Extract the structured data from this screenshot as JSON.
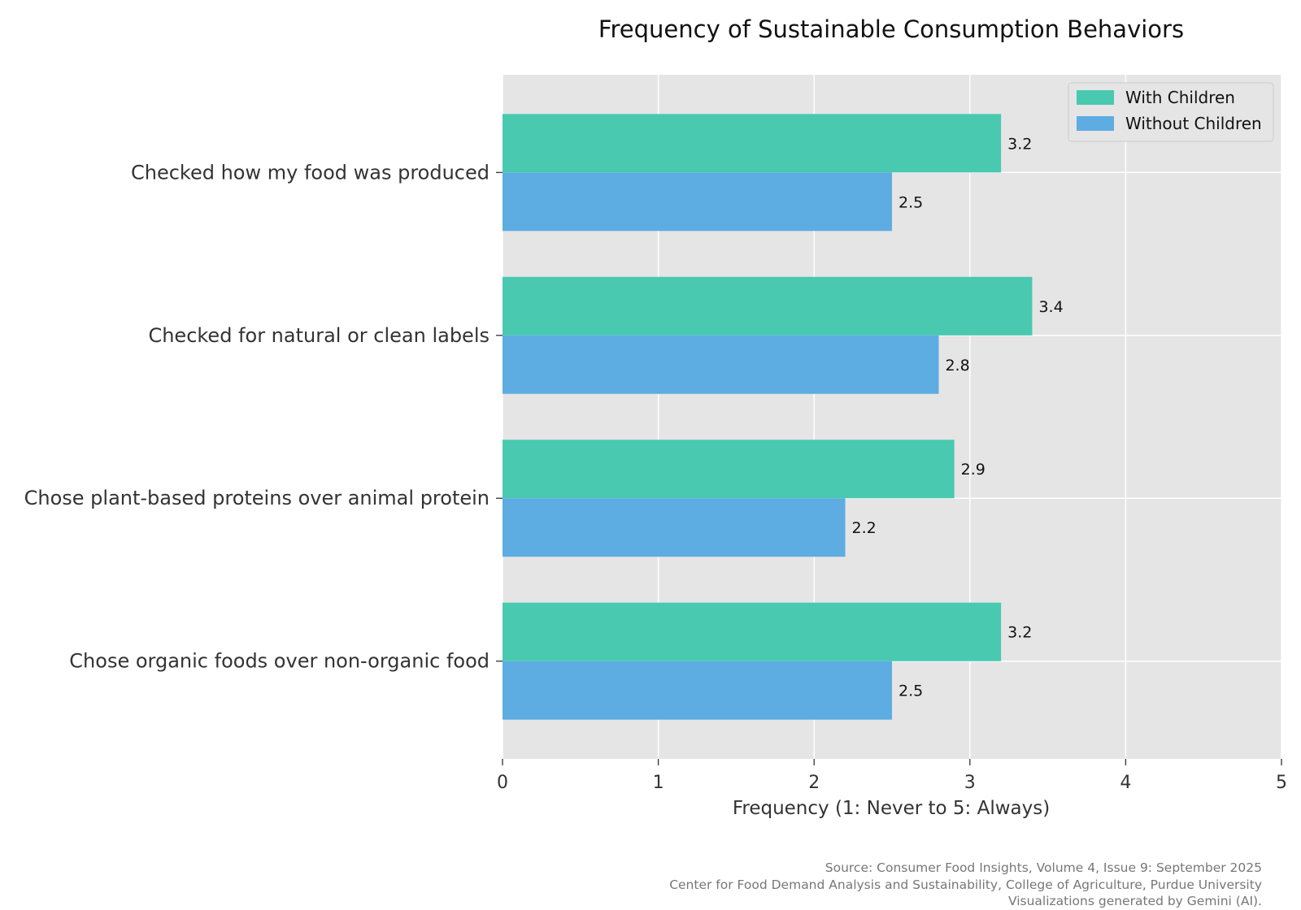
{
  "chart_data": {
    "type": "bar",
    "orientation": "horizontal",
    "title": "Frequency of Sustainable Consumption Behaviors",
    "categories": [
      "Checked how my food was produced",
      "Checked for natural or clean labels",
      "Chose plant-based proteins over animal protein",
      "Chose organic foods over non-organic food"
    ],
    "series": [
      {
        "name": "With Children",
        "color": "#48c9b0",
        "values": [
          3.2,
          3.4,
          2.9,
          3.2
        ]
      },
      {
        "name": "Without Children",
        "color": "#5dade2",
        "values": [
          2.5,
          2.8,
          2.2,
          2.5
        ]
      }
    ],
    "xlabel": "Frequency (1: Never to 5: Always)",
    "ylabel": "",
    "xlim": [
      0,
      5
    ],
    "xticks": [
      "0",
      "1",
      "2",
      "3",
      "4",
      "5"
    ],
    "grid": true,
    "legend": "top-right",
    "background_color": "#e5e5e5",
    "grid_color": "#ffffff"
  },
  "source": {
    "line1": "Source: Consumer Food Insights, Volume 4, Issue 9: September 2025",
    "line2": "Center for Food Demand Analysis and Sustainability, College of Agriculture, Purdue University",
    "line3": "Visualizations generated by Gemini (AI)."
  }
}
